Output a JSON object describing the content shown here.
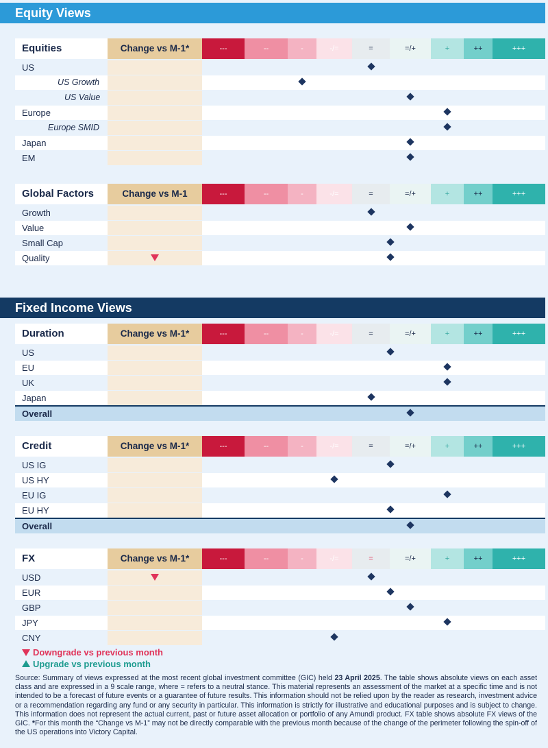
{
  "sections": {
    "equity": "Equity Views",
    "fixed_income": "Fixed Income Views"
  },
  "scale": [
    "---",
    "--",
    "-",
    "-/=",
    "=",
    "=/+",
    "+",
    "++",
    "+++"
  ],
  "colors": {
    "s0": "#c8193c",
    "s1": "#ef8fa3",
    "s2": "#f4b3c2",
    "s3": "#fbe2e8",
    "s4": "#e7ecef",
    "s5": "#eaf4f3",
    "s6": "#b3e5e2",
    "s7": "#73cfcb",
    "s8": "#2fb2ac",
    "down": "#e0345a",
    "up": "#1d9b8f"
  },
  "tables": [
    {
      "key": "equities",
      "title": "Equities",
      "change": "Change vs M-1*",
      "rows": [
        {
          "label": "US",
          "pos": 4,
          "italic": false
        },
        {
          "label": "US Growth",
          "pos": 2,
          "italic": true
        },
        {
          "label": "US Value",
          "pos": 5,
          "italic": true
        },
        {
          "label": "Europe",
          "pos": 6,
          "italic": false
        },
        {
          "label": "Europe SMID",
          "pos": 6,
          "italic": true
        },
        {
          "label": "Japan",
          "pos": 5,
          "italic": false
        },
        {
          "label": "EM",
          "pos": 5,
          "italic": false
        }
      ]
    },
    {
      "key": "factors",
      "title": "Global Factors",
      "change": "Change vs M-1",
      "rows": [
        {
          "label": "Growth",
          "pos": 4
        },
        {
          "label": "Value",
          "pos": 5
        },
        {
          "label": "Small Cap",
          "pos": 4.5
        },
        {
          "label": "Quality",
          "pos": 4.5,
          "change": "down"
        }
      ]
    },
    {
      "key": "duration",
      "title": "Duration",
      "change": "Change vs M-1*",
      "rows": [
        {
          "label": "US",
          "pos": 4.5
        },
        {
          "label": "EU",
          "pos": 6
        },
        {
          "label": "UK",
          "pos": 6
        },
        {
          "label": "Japan",
          "pos": 4
        },
        {
          "label": "Overall",
          "pos": 5,
          "overall": true
        }
      ]
    },
    {
      "key": "credit",
      "title": "Credit",
      "change": "Change vs M-1*",
      "rows": [
        {
          "label": "US IG",
          "pos": 4.5
        },
        {
          "label": "US HY",
          "pos": 3
        },
        {
          "label": "EU IG",
          "pos": 6
        },
        {
          "label": "EU HY",
          "pos": 4.5
        },
        {
          "label": "Overall",
          "pos": 5,
          "overall": true
        }
      ]
    },
    {
      "key": "fx",
      "title": "FX",
      "change": "Change vs M-1*",
      "rows": [
        {
          "label": "USD",
          "pos": 4,
          "change": "down"
        },
        {
          "label": "EUR",
          "pos": 4.5
        },
        {
          "label": "GBP",
          "pos": 5
        },
        {
          "label": "JPY",
          "pos": 6
        },
        {
          "label": "CNY",
          "pos": 3
        }
      ]
    }
  ],
  "legend": {
    "down": "Downgrade vs previous month",
    "up": "Upgrade vs previous month"
  },
  "source": {
    "lead": "Source: Summary of views expressed at the most recent global investment committee (GIC) held ",
    "date": "23 April 2025",
    "mid": ". The table shows absolute views on each asset class and are expressed in a 9 scale range, where = refers to a neutral stance. This material represents an assessment of the market at a specific time and is not intended to be a forecast of future events or a guarantee of future results. This information should not be relied upon by the reader as research, investment advice or a recommendation regarding any fund or any security in particular. This information is strictly for illustrative and educational purposes and is subject to change. This information does not represent the actual current, past or future asset allocation or portfolio of any Amundi product. FX table shows absolute FX views of the GIC. ",
    "star": "*",
    "tail": "For this month the “Change vs M-1” may not be directly comparable with the previous month because of the change of the perimeter following the spin-off of the US operations into Victory Capital."
  }
}
